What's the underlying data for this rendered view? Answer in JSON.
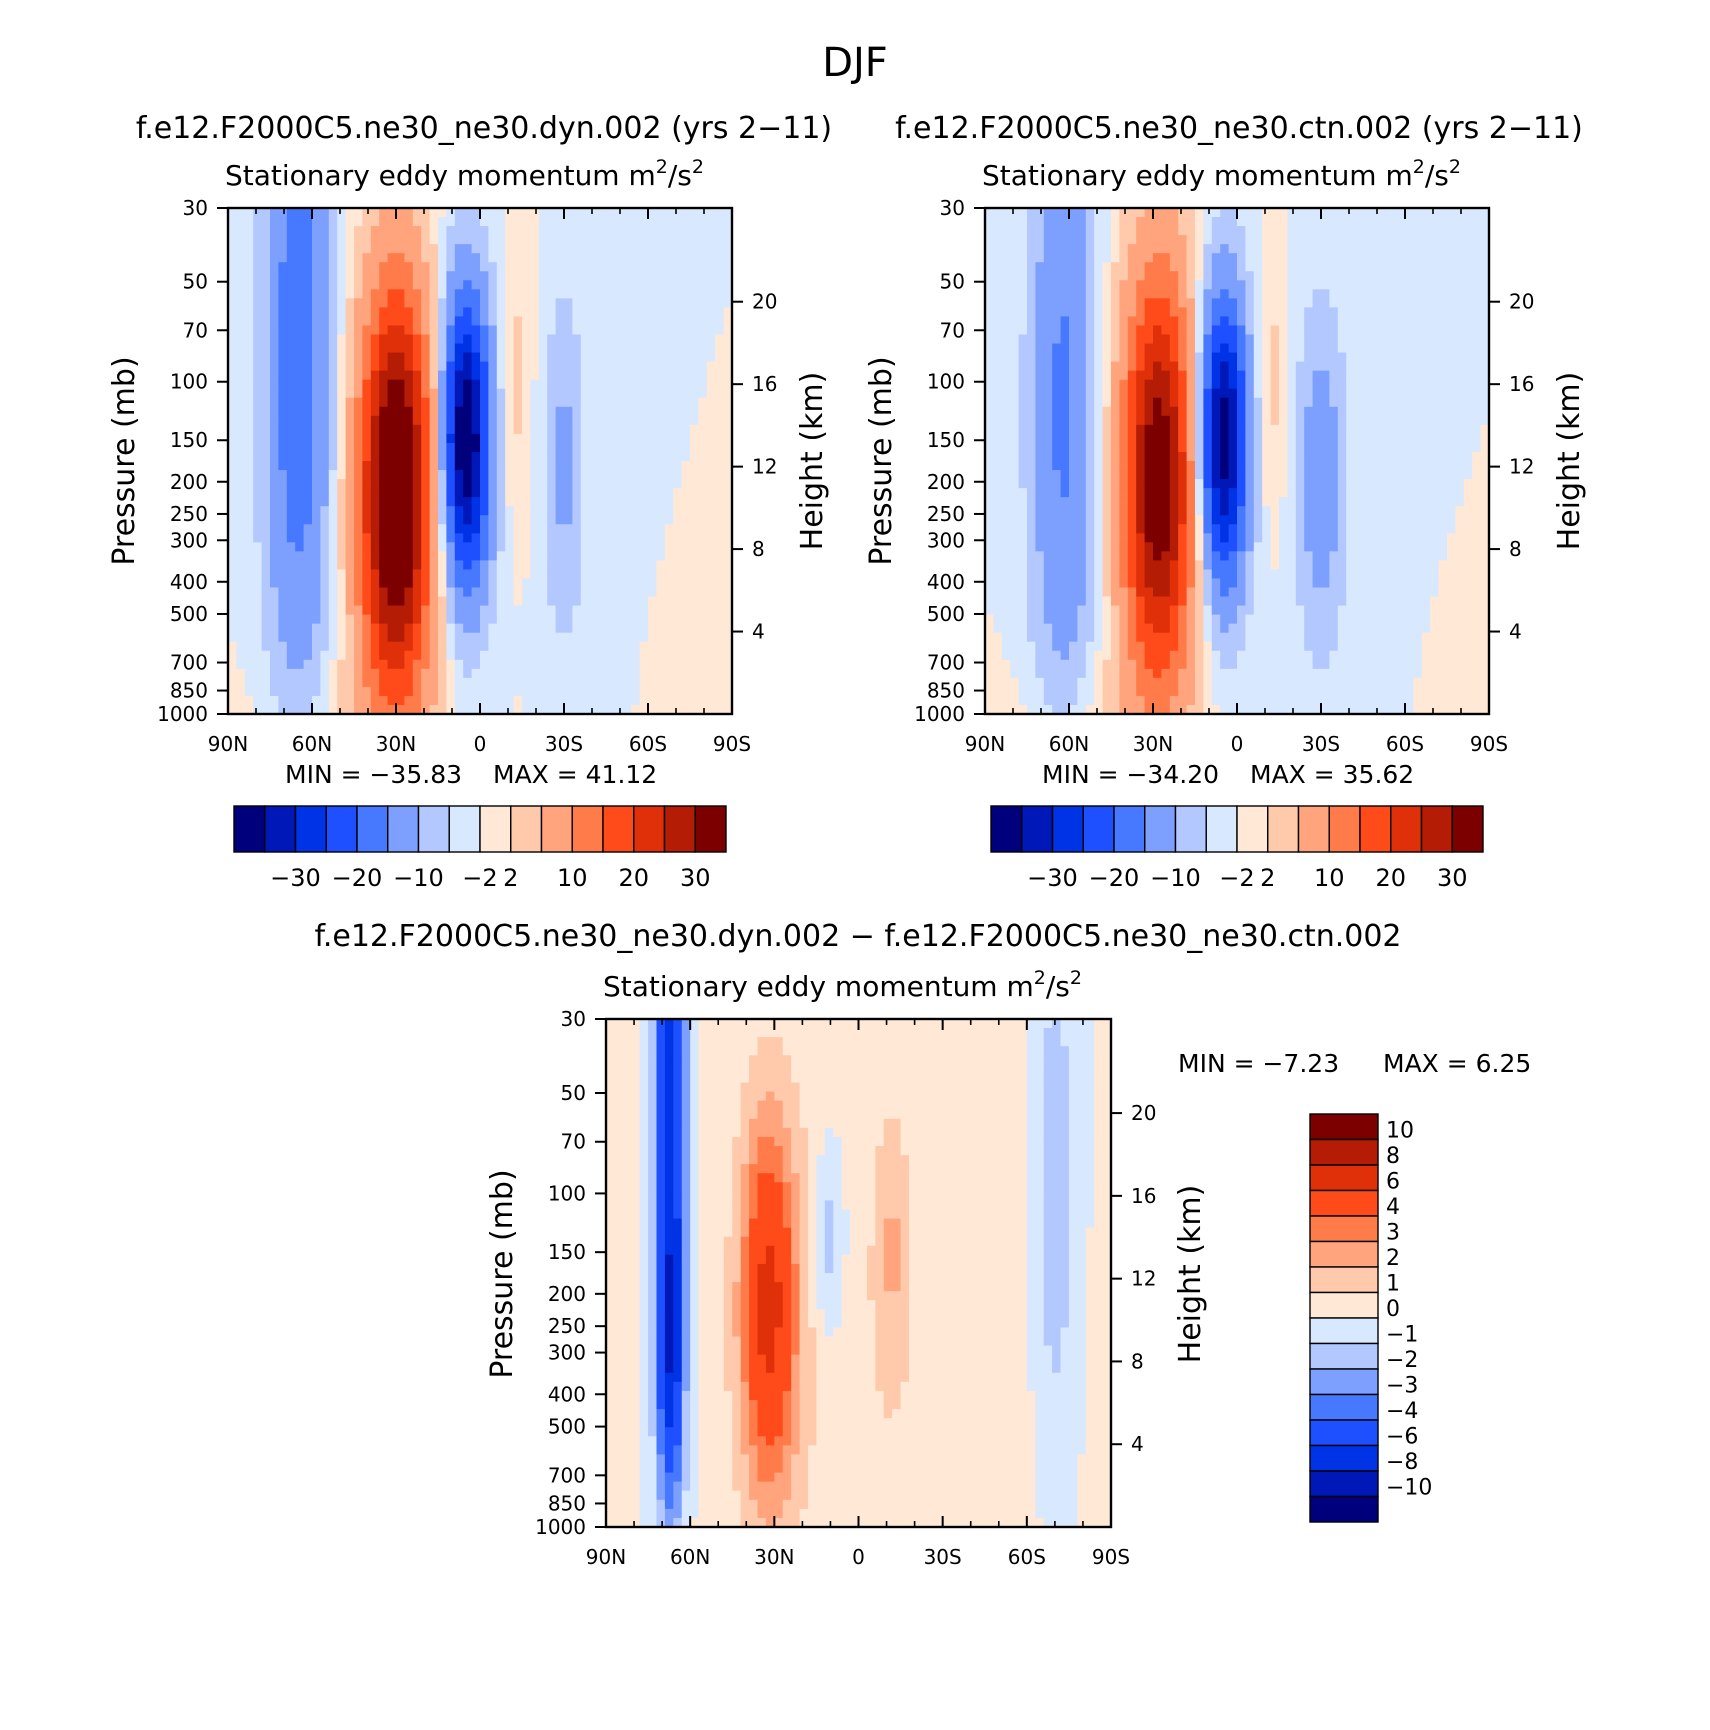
{
  "figure": {
    "title": "DJF"
  },
  "palettes": {
    "main": [
      "#00007d",
      "#0018b8",
      "#0032e6",
      "#1e50ff",
      "#4679ff",
      "#7da0ff",
      "#b2c8ff",
      "#d8e8ff",
      "#ffe8d5",
      "#ffcaac",
      "#ffa47c",
      "#ff7b4a",
      "#ff4b1a",
      "#e0300a",
      "#b51c05",
      "#7d0000"
    ],
    "diff": [
      "#00007d",
      "#0018b8",
      "#0032e6",
      "#1e50ff",
      "#4679ff",
      "#7da0ff",
      "#b2c8ff",
      "#d8e8ff",
      "#ffe8d5",
      "#ffcaac",
      "#ffa47c",
      "#ff7b4a",
      "#ff4b1a",
      "#e0300a",
      "#b51c05",
      "#7d0000"
    ]
  },
  "chart_data": [
    {
      "id": "dyn",
      "type": "heatmap",
      "case_title": "f.e12.F2000C5.ne30_ne30.dyn.002 (yrs 2−11)",
      "title": "Stationary eddy momentum",
      "units_base": "m",
      "units_sup1": "2",
      "units_mid": "/s",
      "units_sup2": "2",
      "ylabel": "Pressure (mb)",
      "ylabel_right": "Height (km)",
      "x_ticks": [
        "90N",
        "60N",
        "30N",
        "0",
        "30S",
        "60S",
        "90S"
      ],
      "x_range": [
        90,
        -90
      ],
      "y_ticks": [
        30,
        50,
        70,
        100,
        150,
        200,
        250,
        300,
        400,
        500,
        700,
        850,
        1000
      ],
      "y_range": [
        30,
        1000
      ],
      "height_ticks": [
        20,
        16,
        12,
        8,
        4
      ],
      "min_text": "MIN = −35.83",
      "max_text": "MAX =   41.12",
      "min_value": -35.83,
      "max_value": 41.12,
      "contour_levels": [
        -30,
        -25,
        -20,
        -15,
        -10,
        -5,
        -2,
        0,
        2,
        5,
        10,
        15,
        20,
        25,
        30
      ],
      "colorbar_labels": [
        "−30",
        "−20",
        "−10",
        "−2",
        "2",
        "10",
        "20",
        "30"
      ],
      "features": [
        {
          "lat": 65,
          "p": 90,
          "amp": -14,
          "wlat": 8,
          "wz": 1.6
        },
        {
          "lat": 30,
          "p": 220,
          "amp": 41,
          "wlat": 9,
          "wz": 1.0
        },
        {
          "lat": 5,
          "p": 150,
          "amp": -36,
          "wlat": 6,
          "wz": 0.7
        },
        {
          "lat": -30,
          "p": 180,
          "amp": -6,
          "wlat": 5,
          "wz": 0.8
        },
        {
          "lat": -12,
          "p": 100,
          "amp": 3,
          "wlat": 4,
          "wz": 0.6
        },
        {
          "lat": 50,
          "p": 1000,
          "amp": 2,
          "wlat": 20,
          "wz": 0.3
        }
      ]
    },
    {
      "id": "ctn",
      "type": "heatmap",
      "case_title": "f.e12.F2000C5.ne30_ne30.ctn.002 (yrs 2−11)",
      "title": "Stationary eddy momentum",
      "units_base": "m",
      "units_sup1": "2",
      "units_mid": "/s",
      "units_sup2": "2",
      "ylabel": "Pressure (mb)",
      "ylabel_right": "Height (km)",
      "x_ticks": [
        "90N",
        "60N",
        "30N",
        "0",
        "30S",
        "60S",
        "90S"
      ],
      "x_range": [
        90,
        -90
      ],
      "y_ticks": [
        30,
        50,
        70,
        100,
        150,
        200,
        250,
        300,
        400,
        500,
        700,
        850,
        1000
      ],
      "y_range": [
        30,
        1000
      ],
      "height_ticks": [
        20,
        16,
        12,
        8,
        4
      ],
      "min_text": "MIN = −34.20",
      "max_text": "MAX =   35.62",
      "min_value": -34.2,
      "max_value": 35.62,
      "contour_levels": [
        -30,
        -25,
        -20,
        -15,
        -10,
        -5,
        -2,
        0,
        2,
        5,
        10,
        15,
        20,
        25,
        30
      ],
      "colorbar_labels": [
        "−30",
        "−20",
        "−10",
        "−2",
        "2",
        "10",
        "20",
        "30"
      ],
      "features": [
        {
          "lat": 62,
          "p": 120,
          "amp": -11,
          "wlat": 8,
          "wz": 1.5
        },
        {
          "lat": 28,
          "p": 200,
          "amp": 35,
          "wlat": 9,
          "wz": 1.0
        },
        {
          "lat": 5,
          "p": 150,
          "amp": -34,
          "wlat": 6,
          "wz": 0.7
        },
        {
          "lat": -30,
          "p": 200,
          "amp": -8,
          "wlat": 6,
          "wz": 0.8
        },
        {
          "lat": -12,
          "p": 100,
          "amp": 3,
          "wlat": 4,
          "wz": 0.6
        },
        {
          "lat": 50,
          "p": 1000,
          "amp": 2,
          "wlat": 20,
          "wz": 0.3
        }
      ]
    },
    {
      "id": "diff",
      "type": "heatmap",
      "case_title": "f.e12.F2000C5.ne30_ne30.dyn.002 − f.e12.F2000C5.ne30_ne30.ctn.002",
      "title": "Stationary eddy momentum",
      "units_base": "m",
      "units_sup1": "2",
      "units_mid": "/s",
      "units_sup2": "2",
      "ylabel": "Pressure (mb)",
      "ylabel_right": "Height (km)",
      "x_ticks": [
        "90N",
        "60N",
        "30N",
        "0",
        "30S",
        "60S",
        "90S"
      ],
      "x_range": [
        90,
        -90
      ],
      "y_ticks": [
        30,
        50,
        70,
        100,
        150,
        200,
        250,
        300,
        400,
        500,
        700,
        850,
        1000
      ],
      "y_range": [
        30,
        1000
      ],
      "height_ticks": [
        20,
        16,
        12,
        8,
        4
      ],
      "min_text": "MIN =   −7.23",
      "max_text": "MAX =     6.25",
      "min_value": -7.23,
      "max_value": 6.25,
      "contour_levels": [
        -10,
        -8,
        -6,
        -4,
        -3,
        -2,
        -1,
        0,
        1,
        2,
        3,
        4,
        6,
        8,
        10
      ],
      "colorbar_labels": [
        "10",
        "8",
        "6",
        "4",
        "3",
        "2",
        "1",
        "0",
        "−1",
        "−2",
        "−3",
        "−4",
        "−6",
        "−8",
        "−10"
      ],
      "features": [
        {
          "lat": 67,
          "p": 60,
          "amp": -7,
          "wlat": 4,
          "wz": 1.8
        },
        {
          "lat": 67,
          "p": 300,
          "amp": -4,
          "wlat": 3,
          "wz": 0.6
        },
        {
          "lat": 32,
          "p": 220,
          "amp": 6.2,
          "wlat": 7,
          "wz": 0.9
        },
        {
          "lat": 10,
          "p": 140,
          "amp": -2,
          "wlat": 4,
          "wz": 0.5
        },
        {
          "lat": -70,
          "p": 100,
          "amp": -2,
          "wlat": 5,
          "wz": 1.2
        },
        {
          "lat": -12,
          "p": 150,
          "amp": 1.5,
          "wlat": 4,
          "wz": 0.6
        },
        {
          "lat": 0,
          "p": 300,
          "amp": 0.8,
          "wlat": 40,
          "wz": 2.0
        }
      ]
    }
  ]
}
